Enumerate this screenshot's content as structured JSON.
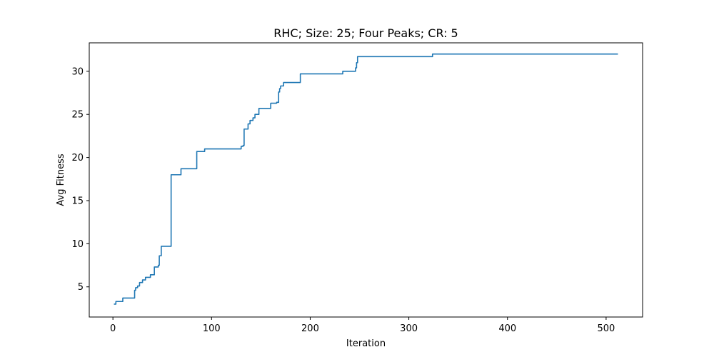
{
  "chart_data": {
    "type": "line",
    "title": "RHC; Size: 25; Four Peaks; CR: 5",
    "xlabel": "Iteration",
    "ylabel": "Avg Fitness",
    "xlim": [
      -24,
      537
    ],
    "ylim": [
      1.5,
      33.3
    ],
    "x_ticks": [
      0,
      100,
      200,
      300,
      400,
      500
    ],
    "y_ticks": [
      5,
      10,
      15,
      20,
      25,
      30
    ],
    "grid": false,
    "color": "#1f77b4",
    "series": [
      {
        "step": true,
        "x": [
          1,
          3,
          10,
          22,
          23,
          25,
          27,
          30,
          33,
          38,
          42,
          46,
          47,
          49,
          59,
          69,
          85,
          93,
          130,
          132,
          133,
          137,
          139,
          142,
          144,
          148,
          160,
          166,
          168,
          169,
          170,
          173,
          190,
          233,
          246,
          247,
          248,
          324,
          512
        ],
        "y": [
          3.0,
          3.3,
          3.7,
          4.6,
          4.9,
          5.1,
          5.5,
          5.8,
          6.1,
          6.4,
          7.3,
          7.5,
          8.6,
          9.7,
          18.0,
          18.7,
          20.7,
          21.0,
          21.3,
          21.4,
          23.3,
          23.9,
          24.3,
          24.6,
          25.0,
          25.7,
          26.3,
          26.4,
          27.6,
          28.0,
          28.3,
          28.7,
          29.7,
          30.0,
          30.4,
          31.0,
          31.7,
          32.0,
          32.0
        ]
      }
    ]
  }
}
